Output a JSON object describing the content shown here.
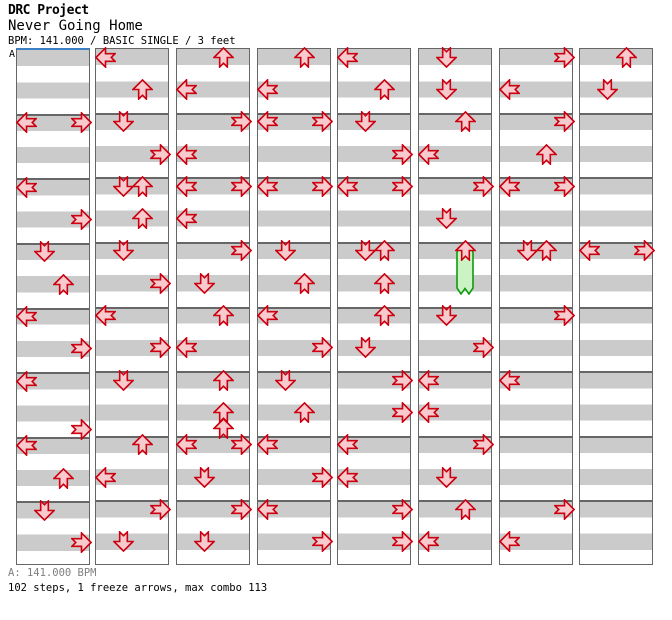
{
  "header": {
    "project_title": "DRC Project",
    "song_title": "Never Going Home",
    "meta_line": "BPM: 141.000 / BASIC SINGLE / 3 feet"
  },
  "footer": {
    "section_bpm_line": "A: 141.000 BPM",
    "stats_line": "102 steps, 1 freeze arrows, max combo 113"
  },
  "chart": {
    "section_label": "A",
    "columns": 8,
    "rows_per_column": 32,
    "measures_per_column": 8,
    "lanes": [
      "left",
      "down",
      "up",
      "right"
    ],
    "colors": {
      "arrow_outline": "#cc0011",
      "arrow_fill": "#f7cbce",
      "freeze_outline": "#0f9a0f",
      "freeze_fill": "#ccf3c4",
      "stripe_gray": "#cbcbcb",
      "grid_line": "#666666",
      "section_marker_blue": "#3b7fc4"
    },
    "freeze": {
      "column": 6,
      "row": 12,
      "direction": "up",
      "length_rows": 2.8
    },
    "notes": [
      {
        "c": 1,
        "r": 4,
        "d": "left"
      },
      {
        "c": 1,
        "r": 4,
        "d": "right"
      },
      {
        "c": 1,
        "r": 8,
        "d": "left"
      },
      {
        "c": 1,
        "r": 10,
        "d": "right"
      },
      {
        "c": 1,
        "r": 12,
        "d": "down"
      },
      {
        "c": 1,
        "r": 14,
        "d": "up"
      },
      {
        "c": 1,
        "r": 16,
        "d": "left"
      },
      {
        "c": 1,
        "r": 18,
        "d": "right"
      },
      {
        "c": 1,
        "r": 20,
        "d": "left"
      },
      {
        "c": 1,
        "r": 23,
        "d": "right"
      },
      {
        "c": 1,
        "r": 24,
        "d": "left"
      },
      {
        "c": 1,
        "r": 26,
        "d": "up"
      },
      {
        "c": 1,
        "r": 28,
        "d": "down"
      },
      {
        "c": 1,
        "r": 30,
        "d": "right"
      },
      {
        "c": 2,
        "r": 0,
        "d": "left"
      },
      {
        "c": 2,
        "r": 2,
        "d": "up"
      },
      {
        "c": 2,
        "r": 4,
        "d": "down"
      },
      {
        "c": 2,
        "r": 6,
        "d": "right"
      },
      {
        "c": 2,
        "r": 8,
        "d": "down"
      },
      {
        "c": 2,
        "r": 8,
        "d": "up"
      },
      {
        "c": 2,
        "r": 10,
        "d": "up"
      },
      {
        "c": 2,
        "r": 12,
        "d": "down"
      },
      {
        "c": 2,
        "r": 14,
        "d": "right"
      },
      {
        "c": 2,
        "r": 16,
        "d": "left"
      },
      {
        "c": 2,
        "r": 18,
        "d": "right"
      },
      {
        "c": 2,
        "r": 20,
        "d": "down"
      },
      {
        "c": 2,
        "r": 24,
        "d": "up"
      },
      {
        "c": 2,
        "r": 26,
        "d": "left"
      },
      {
        "c": 2,
        "r": 28,
        "d": "right"
      },
      {
        "c": 2,
        "r": 30,
        "d": "down"
      },
      {
        "c": 3,
        "r": 0,
        "d": "up"
      },
      {
        "c": 3,
        "r": 2,
        "d": "left"
      },
      {
        "c": 3,
        "r": 4,
        "d": "right"
      },
      {
        "c": 3,
        "r": 6,
        "d": "left"
      },
      {
        "c": 3,
        "r": 8,
        "d": "left"
      },
      {
        "c": 3,
        "r": 8,
        "d": "right"
      },
      {
        "c": 3,
        "r": 10,
        "d": "left"
      },
      {
        "c": 3,
        "r": 12,
        "d": "right"
      },
      {
        "c": 3,
        "r": 14,
        "d": "down"
      },
      {
        "c": 3,
        "r": 16,
        "d": "up"
      },
      {
        "c": 3,
        "r": 18,
        "d": "left"
      },
      {
        "c": 3,
        "r": 20,
        "d": "up"
      },
      {
        "c": 3,
        "r": 22,
        "d": "up"
      },
      {
        "c": 3,
        "r": 23,
        "d": "up"
      },
      {
        "c": 3,
        "r": 24,
        "d": "left"
      },
      {
        "c": 3,
        "r": 24,
        "d": "right"
      },
      {
        "c": 3,
        "r": 26,
        "d": "down"
      },
      {
        "c": 3,
        "r": 28,
        "d": "right"
      },
      {
        "c": 3,
        "r": 30,
        "d": "down"
      },
      {
        "c": 4,
        "r": 0,
        "d": "up"
      },
      {
        "c": 4,
        "r": 2,
        "d": "left"
      },
      {
        "c": 4,
        "r": 4,
        "d": "left"
      },
      {
        "c": 4,
        "r": 4,
        "d": "right"
      },
      {
        "c": 4,
        "r": 8,
        "d": "left"
      },
      {
        "c": 4,
        "r": 8,
        "d": "right"
      },
      {
        "c": 4,
        "r": 12,
        "d": "down"
      },
      {
        "c": 4,
        "r": 14,
        "d": "up"
      },
      {
        "c": 4,
        "r": 16,
        "d": "left"
      },
      {
        "c": 4,
        "r": 18,
        "d": "right"
      },
      {
        "c": 4,
        "r": 20,
        "d": "down"
      },
      {
        "c": 4,
        "r": 22,
        "d": "up"
      },
      {
        "c": 4,
        "r": 24,
        "d": "left"
      },
      {
        "c": 4,
        "r": 26,
        "d": "right"
      },
      {
        "c": 4,
        "r": 28,
        "d": "left"
      },
      {
        "c": 4,
        "r": 30,
        "d": "right"
      },
      {
        "c": 5,
        "r": 0,
        "d": "left"
      },
      {
        "c": 5,
        "r": 2,
        "d": "up"
      },
      {
        "c": 5,
        "r": 4,
        "d": "down"
      },
      {
        "c": 5,
        "r": 6,
        "d": "right"
      },
      {
        "c": 5,
        "r": 8,
        "d": "left"
      },
      {
        "c": 5,
        "r": 8,
        "d": "right"
      },
      {
        "c": 5,
        "r": 12,
        "d": "down"
      },
      {
        "c": 5,
        "r": 12,
        "d": "up"
      },
      {
        "c": 5,
        "r": 14,
        "d": "up"
      },
      {
        "c": 5,
        "r": 16,
        "d": "up"
      },
      {
        "c": 5,
        "r": 18,
        "d": "down"
      },
      {
        "c": 5,
        "r": 20,
        "d": "right"
      },
      {
        "c": 5,
        "r": 22,
        "d": "right"
      },
      {
        "c": 5,
        "r": 24,
        "d": "left"
      },
      {
        "c": 5,
        "r": 26,
        "d": "left"
      },
      {
        "c": 5,
        "r": 28,
        "d": "right"
      },
      {
        "c": 5,
        "r": 30,
        "d": "right"
      },
      {
        "c": 6,
        "r": 0,
        "d": "down"
      },
      {
        "c": 6,
        "r": 2,
        "d": "down"
      },
      {
        "c": 6,
        "r": 4,
        "d": "up"
      },
      {
        "c": 6,
        "r": 6,
        "d": "left"
      },
      {
        "c": 6,
        "r": 8,
        "d": "right"
      },
      {
        "c": 6,
        "r": 10,
        "d": "down"
      },
      {
        "c": 6,
        "r": 12,
        "d": "up",
        "freeze": true
      },
      {
        "c": 6,
        "r": 16,
        "d": "down"
      },
      {
        "c": 6,
        "r": 18,
        "d": "right"
      },
      {
        "c": 6,
        "r": 20,
        "d": "left"
      },
      {
        "c": 6,
        "r": 22,
        "d": "left"
      },
      {
        "c": 6,
        "r": 24,
        "d": "right"
      },
      {
        "c": 6,
        "r": 26,
        "d": "down"
      },
      {
        "c": 6,
        "r": 28,
        "d": "up"
      },
      {
        "c": 6,
        "r": 30,
        "d": "left"
      },
      {
        "c": 7,
        "r": 0,
        "d": "right"
      },
      {
        "c": 7,
        "r": 2,
        "d": "left"
      },
      {
        "c": 7,
        "r": 4,
        "d": "right"
      },
      {
        "c": 7,
        "r": 6,
        "d": "up"
      },
      {
        "c": 7,
        "r": 8,
        "d": "left"
      },
      {
        "c": 7,
        "r": 8,
        "d": "right"
      },
      {
        "c": 7,
        "r": 12,
        "d": "down"
      },
      {
        "c": 7,
        "r": 12,
        "d": "up"
      },
      {
        "c": 7,
        "r": 16,
        "d": "right"
      },
      {
        "c": 7,
        "r": 20,
        "d": "left"
      },
      {
        "c": 7,
        "r": 28,
        "d": "right"
      },
      {
        "c": 7,
        "r": 30,
        "d": "left"
      },
      {
        "c": 8,
        "r": 0,
        "d": "up"
      },
      {
        "c": 8,
        "r": 2,
        "d": "down"
      },
      {
        "c": 8,
        "r": 12,
        "d": "left"
      },
      {
        "c": 8,
        "r": 12,
        "d": "right"
      }
    ]
  }
}
